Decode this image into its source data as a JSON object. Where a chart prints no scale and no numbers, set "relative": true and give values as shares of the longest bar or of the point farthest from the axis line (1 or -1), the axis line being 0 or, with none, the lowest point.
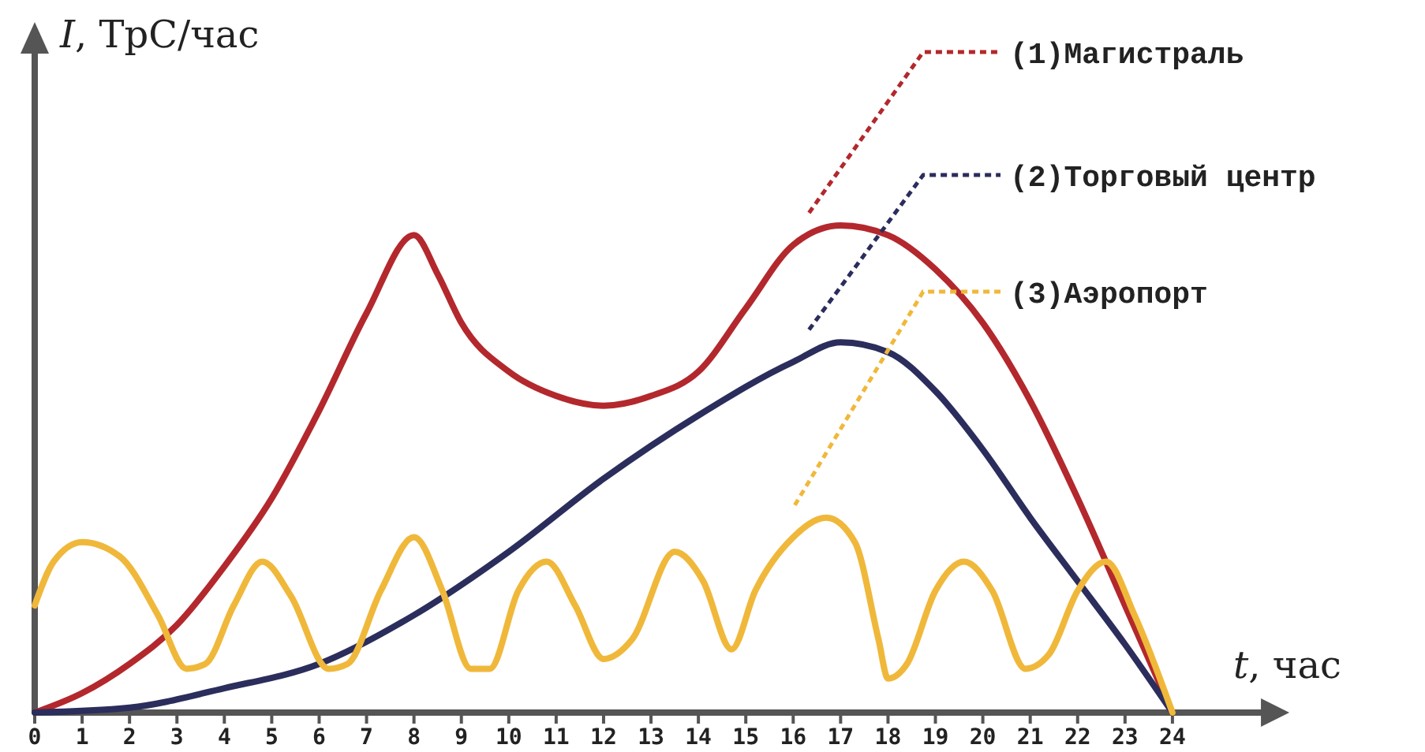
{
  "chart_data": {
    "type": "line",
    "relative": true,
    "xlabel": "t, час",
    "ylabel": "I, ТрС/час",
    "xlim": [
      0,
      26
    ],
    "xticks": [
      0,
      1,
      2,
      3,
      4,
      5,
      6,
      7,
      8,
      9,
      10,
      11,
      12,
      13,
      14,
      15,
      16,
      17,
      18,
      19,
      20,
      21,
      22,
      23,
      24
    ],
    "legend": false,
    "marker": "none",
    "line_style": "solid",
    "series": [
      {
        "name": "(1)Магистраль",
        "color": "#b3282d",
        "x": [
          0,
          1,
          2,
          3,
          4,
          5,
          6,
          7,
          8,
          8.5,
          9,
          10,
          11,
          12,
          13,
          14,
          15,
          16,
          17,
          18,
          19,
          20,
          21,
          22,
          23,
          24
        ],
        "values": [
          0,
          0.04,
          0.1,
          0.18,
          0.3,
          0.44,
          0.62,
          0.82,
          0.98,
          0.9,
          0.8,
          0.7,
          0.65,
          0.63,
          0.65,
          0.7,
          0.83,
          0.96,
          1,
          0.98,
          0.91,
          0.8,
          0.64,
          0.44,
          0.22,
          0
        ]
      },
      {
        "name": "(2)Торговый центр",
        "color": "#2b2d5c",
        "x": [
          0,
          2,
          4,
          6,
          8,
          10,
          12,
          14,
          16,
          17,
          18,
          19,
          20,
          21,
          22,
          23,
          24
        ],
        "values": [
          0,
          0.01,
          0.05,
          0.1,
          0.2,
          0.33,
          0.48,
          0.61,
          0.72,
          0.76,
          0.74,
          0.66,
          0.54,
          0.4,
          0.27,
          0.14,
          0
        ]
      },
      {
        "name": "(3)Аэропорт",
        "color": "#f0b83a",
        "x": [
          0,
          0.4,
          1,
          1.8,
          2.6,
          3.2,
          3.6,
          4.2,
          4.8,
          5.4,
          6.2,
          6.6,
          7.3,
          8,
          8.6,
          9.2,
          9.6,
          10.2,
          10.8,
          11.4,
          12,
          12.6,
          13.5,
          14.1,
          14.7,
          15.2,
          16,
          16.7,
          17.3,
          17.8,
          18,
          18.4,
          19,
          19.6,
          20.2,
          20.9,
          21.4,
          22,
          22.6,
          23.2,
          24
        ],
        "values": [
          0.22,
          0.31,
          0.35,
          0.32,
          0.2,
          0.09,
          0.1,
          0.22,
          0.31,
          0.24,
          0.09,
          0.1,
          0.25,
          0.36,
          0.25,
          0.09,
          0.09,
          0.25,
          0.31,
          0.22,
          0.11,
          0.15,
          0.33,
          0.27,
          0.13,
          0.25,
          0.36,
          0.4,
          0.35,
          0.15,
          0.07,
          0.1,
          0.25,
          0.31,
          0.25,
          0.09,
          0.12,
          0.25,
          0.31,
          0.2,
          0
        ]
      }
    ]
  }
}
